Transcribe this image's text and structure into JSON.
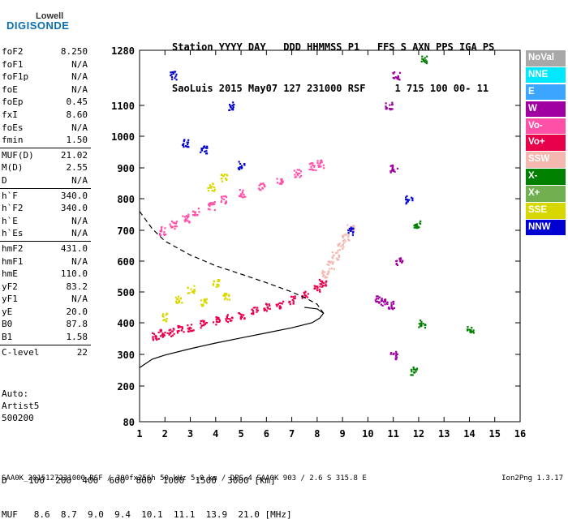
{
  "logo": {
    "line1": "Lowell",
    "line2": "DIGISONDE"
  },
  "header": {
    "line1": "Station YYYY DAY   DDD HHMMSS P1   FFS S AXN PPS IGA PS",
    "line2": "SaoLuis 2015 May07 127 231000 RSF     1 715 100 00- 11"
  },
  "parameters": [
    {
      "name": "foF2",
      "value": "8.250"
    },
    {
      "name": "foF1",
      "value": "N/A"
    },
    {
      "name": "foF1p",
      "value": "N/A"
    },
    {
      "name": "foE",
      "value": "N/A"
    },
    {
      "name": "foEp",
      "value": "0.45"
    },
    {
      "name": "fxI",
      "value": "8.60"
    },
    {
      "name": "foEs",
      "value": "N/A"
    },
    {
      "name": "fmin",
      "value": "1.50"
    },
    {
      "sep": true
    },
    {
      "name": "MUF(D)",
      "value": "21.02"
    },
    {
      "name": "M(D)",
      "value": "2.55"
    },
    {
      "name": "D",
      "value": "N/A"
    },
    {
      "sep": true
    },
    {
      "name": "h`F",
      "value": "340.0"
    },
    {
      "name": "h`F2",
      "value": "340.0"
    },
    {
      "name": "h`E",
      "value": "N/A"
    },
    {
      "name": "h`Es",
      "value": "N/A"
    },
    {
      "sep": true
    },
    {
      "name": "hmF2",
      "value": "431.0"
    },
    {
      "name": "hmF1",
      "value": "N/A"
    },
    {
      "name": "hmE",
      "value": "110.0"
    },
    {
      "name": "yF2",
      "value": "83.2"
    },
    {
      "name": "yF1",
      "value": "N/A"
    },
    {
      "name": "yE",
      "value": "20.0"
    },
    {
      "name": "B0",
      "value": "87.8"
    },
    {
      "name": "B1",
      "value": "1.58"
    },
    {
      "sep": true
    },
    {
      "name": "C-level",
      "value": "22"
    }
  ],
  "auto": {
    "label": "Auto:",
    "artist": "Artist5",
    "code": "500200"
  },
  "legend": [
    {
      "label": "NoVal",
      "color": "#a8a8a8"
    },
    {
      "label": "NNE",
      "color": "#00e8ff"
    },
    {
      "label": "E",
      "color": "#3aa6ff"
    },
    {
      "label": "W",
      "color": "#a000a0"
    },
    {
      "label": "Vo-",
      "color": "#ff50a8"
    },
    {
      "label": "Vo+",
      "color": "#e8004a"
    },
    {
      "label": "SSW",
      "color": "#f4b8b0"
    },
    {
      "label": "X-",
      "color": "#008000"
    },
    {
      "label": "X+",
      "color": "#70b050"
    },
    {
      "label": "SSE",
      "color": "#d8d800"
    },
    {
      "label": "NNW",
      "color": "#0000d0"
    }
  ],
  "bottom": {
    "d_line": "D    100  200  400  600  800  1000  1500  3000 [km]",
    "muf_line": "MUF   8.6  8.7  9.0  9.4  10.1  11.1  13.9  21.0 [MHz]"
  },
  "footer": {
    "text": "SAA0K_2015127231000.RSF / 300fx256h 50 kHz 5.0 km / DPS-4 SAA0K 903 / 2.6 S 315.8 E",
    "version": "Ion2Png 1.3.17"
  },
  "chart_data": {
    "type": "scatter",
    "xlabel": "",
    "ylabel": "",
    "xlim": [
      1,
      16
    ],
    "ylim": [
      80,
      1280
    ],
    "x_ticks": [
      1,
      2,
      3,
      4,
      5,
      6,
      7,
      8,
      9,
      10,
      11,
      12,
      13,
      14,
      15,
      16
    ],
    "y_ticks": [
      80,
      200,
      300,
      400,
      500,
      600,
      700,
      800,
      900,
      1000,
      1100,
      1280
    ],
    "y_scale": "nonlinear",
    "grid": false,
    "legend_placement": "right",
    "series": [
      {
        "color": "#e8004a",
        "points": [
          [
            1.6,
            360
          ],
          [
            1.9,
            368
          ],
          [
            2.2,
            372
          ],
          [
            2.6,
            380
          ],
          [
            3.0,
            388
          ],
          [
            3.5,
            398
          ],
          [
            4.0,
            408
          ],
          [
            4.5,
            418
          ],
          [
            5.0,
            428
          ],
          [
            5.5,
            440
          ],
          [
            6.0,
            452
          ],
          [
            6.5,
            462
          ],
          [
            7.0,
            476
          ],
          [
            7.5,
            492
          ],
          [
            8.0,
            515
          ],
          [
            8.2,
            530
          ]
        ]
      },
      {
        "color": "#ff50a8",
        "points": [
          [
            1.9,
            700
          ],
          [
            2.3,
            720
          ],
          [
            2.8,
            740
          ],
          [
            3.2,
            760
          ],
          [
            3.8,
            780
          ],
          [
            4.3,
            800
          ],
          [
            5.0,
            820
          ],
          [
            5.8,
            840
          ],
          [
            6.5,
            860
          ],
          [
            7.2,
            885
          ],
          [
            7.8,
            905
          ],
          [
            8.1,
            915
          ]
        ]
      },
      {
        "color": "#f4b8b0",
        "points": [
          [
            8.3,
            560
          ],
          [
            8.5,
            590
          ],
          [
            8.7,
            620
          ],
          [
            8.9,
            650
          ],
          [
            9.1,
            680
          ],
          [
            9.3,
            710
          ]
        ]
      },
      {
        "color": "#a000a0",
        "points": [
          [
            10.4,
            480
          ],
          [
            10.6,
            470
          ],
          [
            10.9,
            460
          ],
          [
            11.0,
            300
          ],
          [
            11.2,
            600
          ],
          [
            11.0,
            900
          ],
          [
            10.8,
            1100
          ],
          [
            11.1,
            1200
          ]
        ]
      },
      {
        "color": "#008000",
        "points": [
          [
            11.8,
            250
          ],
          [
            12.1,
            400
          ],
          [
            12.2,
            1250
          ],
          [
            11.9,
            720
          ],
          [
            14.0,
            380
          ]
        ]
      },
      {
        "color": "#d8d800",
        "points": [
          [
            2.0,
            420
          ],
          [
            2.5,
            480
          ],
          [
            3.0,
            510
          ],
          [
            3.5,
            470
          ],
          [
            4.0,
            530
          ],
          [
            4.4,
            490
          ],
          [
            3.8,
            840
          ],
          [
            4.3,
            870
          ]
        ]
      },
      {
        "color": "#0000d0",
        "points": [
          [
            2.3,
            1200
          ],
          [
            2.8,
            980
          ],
          [
            3.5,
            960
          ],
          [
            4.6,
            1100
          ],
          [
            5.0,
            910
          ],
          [
            9.3,
            700
          ],
          [
            11.6,
            800
          ]
        ]
      }
    ],
    "profile_solid": [
      [
        1,
        258
      ],
      [
        1.5,
        285
      ],
      [
        2,
        298
      ],
      [
        3,
        318
      ],
      [
        4,
        336
      ],
      [
        5,
        352
      ],
      [
        6,
        368
      ],
      [
        7,
        384
      ],
      [
        7.8,
        400
      ],
      [
        8.1,
        415
      ],
      [
        8.25,
        431
      ],
      [
        8.0,
        445
      ],
      [
        7.5,
        450
      ]
    ],
    "profile_dashed": [
      [
        1,
        760
      ],
      [
        1.5,
        705
      ],
      [
        2,
        665
      ],
      [
        3,
        620
      ],
      [
        4,
        585
      ],
      [
        5,
        558
      ],
      [
        6,
        530
      ],
      [
        7,
        500
      ],
      [
        7.6,
        478
      ],
      [
        8.0,
        460
      ],
      [
        8.25,
        431
      ]
    ]
  }
}
